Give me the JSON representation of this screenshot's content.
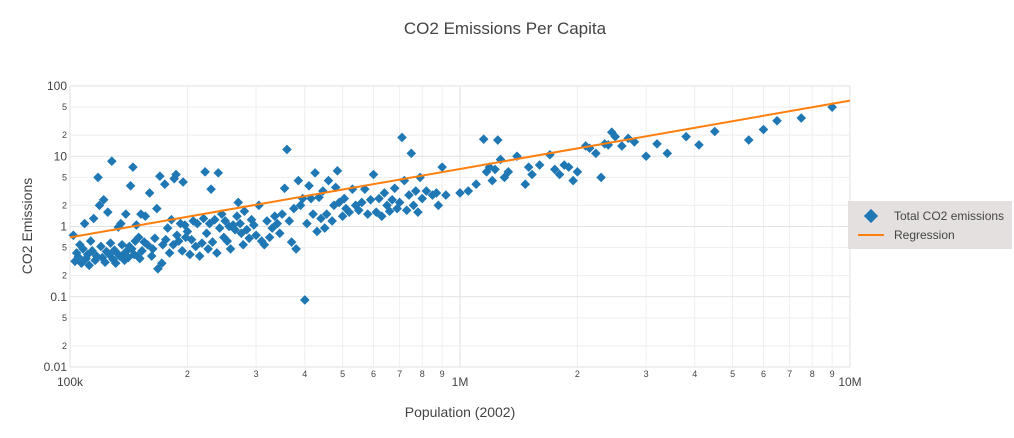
{
  "chart_data": {
    "type": "scatter",
    "title": "CO2 Emissions Per Capita",
    "xlabel": "Population (2002)",
    "ylabel": "CO2 Emissions",
    "x_scale": "log",
    "y_scale": "log",
    "xlim": [
      100000,
      10000000
    ],
    "ylim": [
      0.01,
      100
    ],
    "grid": true,
    "legend_position": "right",
    "x_major_ticks": [
      {
        "value": 100000,
        "label": "100k"
      },
      {
        "value": 1000000,
        "label": "1M"
      },
      {
        "value": 10000000,
        "label": "10M"
      }
    ],
    "x_minor_ticks": [
      {
        "value": 200000,
        "label": "2"
      },
      {
        "value": 300000,
        "label": "3"
      },
      {
        "value": 400000,
        "label": "4"
      },
      {
        "value": 500000,
        "label": "5"
      },
      {
        "value": 600000,
        "label": "6"
      },
      {
        "value": 700000,
        "label": "7"
      },
      {
        "value": 800000,
        "label": "8"
      },
      {
        "value": 900000,
        "label": "9"
      },
      {
        "value": 2000000,
        "label": "2"
      },
      {
        "value": 3000000,
        "label": "3"
      },
      {
        "value": 4000000,
        "label": "4"
      },
      {
        "value": 5000000,
        "label": "5"
      },
      {
        "value": 6000000,
        "label": "6"
      },
      {
        "value": 7000000,
        "label": "7"
      },
      {
        "value": 8000000,
        "label": "8"
      },
      {
        "value": 9000000,
        "label": "9"
      }
    ],
    "y_major_ticks": [
      {
        "value": 0.01,
        "label": "0.01"
      },
      {
        "value": 0.1,
        "label": "0.1"
      },
      {
        "value": 1,
        "label": "1"
      },
      {
        "value": 10,
        "label": "10"
      },
      {
        "value": 100,
        "label": "100"
      }
    ],
    "y_minor_ticks": [
      {
        "value": 0.02,
        "label": "2"
      },
      {
        "value": 0.05,
        "label": "5"
      },
      {
        "value": 0.2,
        "label": "2"
      },
      {
        "value": 0.5,
        "label": "5"
      },
      {
        "value": 2,
        "label": "2"
      },
      {
        "value": 5,
        "label": "5"
      },
      {
        "value": 20,
        "label": "2"
      },
      {
        "value": 50,
        "label": "5"
      }
    ],
    "series": [
      {
        "name": "Total CO2 emissions",
        "kind": "markers",
        "marker": "diamond",
        "color": "#1f77b4",
        "points": [
          [
            102000,
            0.75
          ],
          [
            103000,
            0.32
          ],
          [
            104000,
            0.42
          ],
          [
            105000,
            0.37
          ],
          [
            106000,
            0.55
          ],
          [
            107000,
            0.3
          ],
          [
            108000,
            0.48
          ],
          [
            109000,
            1.1
          ],
          [
            110000,
            0.35
          ],
          [
            111000,
            0.4
          ],
          [
            112000,
            0.28
          ],
          [
            113000,
            0.62
          ],
          [
            114000,
            0.45
          ],
          [
            115000,
            1.3
          ],
          [
            116000,
            0.33
          ],
          [
            117000,
            0.38
          ],
          [
            118000,
            5.0
          ],
          [
            119000,
            2.0
          ],
          [
            120000,
            0.52
          ],
          [
            121000,
            0.36
          ],
          [
            122000,
            2.4
          ],
          [
            123000,
            0.31
          ],
          [
            124000,
            0.44
          ],
          [
            125000,
            1.6
          ],
          [
            126000,
            0.4
          ],
          [
            127000,
            0.58
          ],
          [
            128000,
            8.5
          ],
          [
            129000,
            0.34
          ],
          [
            130000,
            0.46
          ],
          [
            131000,
            0.3
          ],
          [
            132000,
            0.42
          ],
          [
            133000,
            0.98
          ],
          [
            134000,
            0.38
          ],
          [
            135000,
            1.1
          ],
          [
            136000,
            0.55
          ],
          [
            137000,
            0.4
          ],
          [
            138000,
            0.33
          ],
          [
            139000,
            1.5
          ],
          [
            140000,
            0.45
          ],
          [
            141000,
            0.36
          ],
          [
            142000,
            0.52
          ],
          [
            143000,
            3.8
          ],
          [
            144000,
            0.48
          ],
          [
            145000,
            7.0
          ],
          [
            146000,
            0.4
          ],
          [
            147000,
            0.62
          ],
          [
            148000,
            1.05
          ],
          [
            149000,
            0.38
          ],
          [
            150000,
            0.7
          ],
          [
            151000,
            0.35
          ],
          [
            152000,
            1.5
          ],
          [
            153000,
            0.45
          ],
          [
            155000,
            0.6
          ],
          [
            156000,
            1.4
          ],
          [
            158000,
            0.55
          ],
          [
            160000,
            3.0
          ],
          [
            162000,
            0.38
          ],
          [
            163000,
            0.48
          ],
          [
            165000,
            0.68
          ],
          [
            167000,
            1.8
          ],
          [
            168000,
            0.25
          ],
          [
            170000,
            5.2
          ],
          [
            172000,
            0.3
          ],
          [
            173000,
            0.55
          ],
          [
            175000,
            4.0
          ],
          [
            176000,
            0.65
          ],
          [
            178000,
            0.95
          ],
          [
            180000,
            0.42
          ],
          [
            182000,
            1.25
          ],
          [
            184000,
            0.55
          ],
          [
            185000,
            4.8
          ],
          [
            187000,
            5.5
          ],
          [
            188000,
            0.75
          ],
          [
            190000,
            0.62
          ],
          [
            192000,
            1.1
          ],
          [
            194000,
            0.45
          ],
          [
            195000,
            4.3
          ],
          [
            197000,
            1.05
          ],
          [
            198000,
            0.7
          ],
          [
            200000,
            0.85
          ],
          [
            203000,
            0.4
          ],
          [
            205000,
            0.65
          ],
          [
            207000,
            1.2
          ],
          [
            210000,
            0.52
          ],
          [
            212000,
            1.1
          ],
          [
            215000,
            0.38
          ],
          [
            218000,
            0.58
          ],
          [
            220000,
            1.3
          ],
          [
            222000,
            6.0
          ],
          [
            224000,
            0.8
          ],
          [
            226000,
            0.48
          ],
          [
            228000,
            1.1
          ],
          [
            230000,
            3.4
          ],
          [
            232000,
            0.6
          ],
          [
            235000,
            1.25
          ],
          [
            238000,
            0.42
          ],
          [
            240000,
            5.8
          ],
          [
            242000,
            0.95
          ],
          [
            245000,
            1.5
          ],
          [
            248000,
            0.7
          ],
          [
            250000,
            1.2
          ],
          [
            253000,
            0.62
          ],
          [
            256000,
            1.0
          ],
          [
            258000,
            0.48
          ],
          [
            262000,
            1.05
          ],
          [
            265000,
            0.9
          ],
          [
            268000,
            1.4
          ],
          [
            270000,
            2.2
          ],
          [
            273000,
            1.1
          ],
          [
            275000,
            0.8
          ],
          [
            278000,
            0.55
          ],
          [
            280000,
            1.65
          ],
          [
            284000,
            0.9
          ],
          [
            288000,
            0.68
          ],
          [
            292000,
            1.25
          ],
          [
            296000,
            1.05
          ],
          [
            300000,
            0.75
          ],
          [
            305000,
            2.0
          ],
          [
            310000,
            0.62
          ],
          [
            315000,
            0.55
          ],
          [
            320000,
            1.2
          ],
          [
            325000,
            0.7
          ],
          [
            330000,
            0.95
          ],
          [
            335000,
            1.4
          ],
          [
            340000,
            1.1
          ],
          [
            345000,
            0.8
          ],
          [
            350000,
            1.5
          ],
          [
            355000,
            3.5
          ],
          [
            360000,
            12.5
          ],
          [
            365000,
            1.2
          ],
          [
            370000,
            0.6
          ],
          [
            375000,
            1.8
          ],
          [
            380000,
            0.48
          ],
          [
            385000,
            4.5
          ],
          [
            390000,
            2.0
          ],
          [
            395000,
            2.5
          ],
          [
            400000,
            0.09
          ],
          [
            405000,
            1.1
          ],
          [
            410000,
            3.8
          ],
          [
            415000,
            2.5
          ],
          [
            420000,
            1.5
          ],
          [
            425000,
            5.8
          ],
          [
            430000,
            0.85
          ],
          [
            435000,
            2.6
          ],
          [
            440000,
            1.3
          ],
          [
            445000,
            3.2
          ],
          [
            450000,
            0.95
          ],
          [
            455000,
            1.5
          ],
          [
            460000,
            4.5
          ],
          [
            470000,
            1.2
          ],
          [
            475000,
            2.0
          ],
          [
            480000,
            3.6
          ],
          [
            485000,
            6.2
          ],
          [
            490000,
            2.2
          ],
          [
            500000,
            1.4
          ],
          [
            505000,
            2.5
          ],
          [
            510000,
            1.8
          ],
          [
            520000,
            1.6
          ],
          [
            530000,
            3.4
          ],
          [
            540000,
            2.0
          ],
          [
            550000,
            1.7
          ],
          [
            560000,
            2.2
          ],
          [
            570000,
            3.4
          ],
          [
            580000,
            1.5
          ],
          [
            590000,
            2.4
          ],
          [
            600000,
            5.5
          ],
          [
            610000,
            1.6
          ],
          [
            620000,
            2.5
          ],
          [
            630000,
            1.4
          ],
          [
            640000,
            3.0
          ],
          [
            650000,
            2.0
          ],
          [
            660000,
            1.65
          ],
          [
            670000,
            2.4
          ],
          [
            680000,
            3.5
          ],
          [
            690000,
            1.8
          ],
          [
            700000,
            2.2
          ],
          [
            710000,
            18.5
          ],
          [
            720000,
            4.5
          ],
          [
            730000,
            1.7
          ],
          [
            740000,
            2.8
          ],
          [
            750000,
            11.0
          ],
          [
            760000,
            2.0
          ],
          [
            770000,
            3.2
          ],
          [
            780000,
            1.6
          ],
          [
            790000,
            5.0
          ],
          [
            800000,
            2.5
          ],
          [
            820000,
            3.2
          ],
          [
            850000,
            2.8
          ],
          [
            870000,
            3.0
          ],
          [
            880000,
            2.0
          ],
          [
            900000,
            7.0
          ],
          [
            920000,
            2.8
          ],
          [
            1000000,
            3.0
          ],
          [
            1050000,
            3.2
          ],
          [
            1100000,
            4.0
          ],
          [
            1150000,
            17.5
          ],
          [
            1170000,
            6.0
          ],
          [
            1190000,
            7.0
          ],
          [
            1210000,
            4.5
          ],
          [
            1230000,
            6.5
          ],
          [
            1250000,
            17.0
          ],
          [
            1270000,
            9.0
          ],
          [
            1300000,
            5.0
          ],
          [
            1330000,
            6.0
          ],
          [
            1400000,
            10.0
          ],
          [
            1470000,
            4.0
          ],
          [
            1500000,
            7.0
          ],
          [
            1530000,
            5.5
          ],
          [
            1600000,
            7.5
          ],
          [
            1700000,
            10.5
          ],
          [
            1750000,
            6.5
          ],
          [
            1800000,
            5.5
          ],
          [
            1850000,
            7.5
          ],
          [
            1900000,
            7.0
          ],
          [
            1950000,
            4.5
          ],
          [
            2000000,
            6.0
          ],
          [
            2100000,
            14.0
          ],
          [
            2150000,
            13.0
          ],
          [
            2230000,
            11.0
          ],
          [
            2300000,
            5.0
          ],
          [
            2350000,
            15.0
          ],
          [
            2400000,
            14.5
          ],
          [
            2450000,
            22.0
          ],
          [
            2500000,
            19.0
          ],
          [
            2600000,
            14.0
          ],
          [
            2700000,
            18.0
          ],
          [
            2800000,
            16.0
          ],
          [
            3000000,
            10.0
          ],
          [
            3200000,
            15.0
          ],
          [
            3400000,
            11.0
          ],
          [
            3800000,
            19.0
          ],
          [
            4100000,
            14.5
          ],
          [
            4500000,
            22.5
          ],
          [
            5500000,
            17.0
          ],
          [
            6000000,
            24.0
          ],
          [
            6500000,
            32.0
          ],
          [
            7500000,
            35.0
          ],
          [
            9000000,
            50.0
          ]
        ]
      },
      {
        "name": "Regression",
        "kind": "line",
        "color": "#ff7f0e",
        "points": [
          [
            100000,
            0.7
          ],
          [
            10000000,
            62
          ]
        ]
      }
    ]
  }
}
